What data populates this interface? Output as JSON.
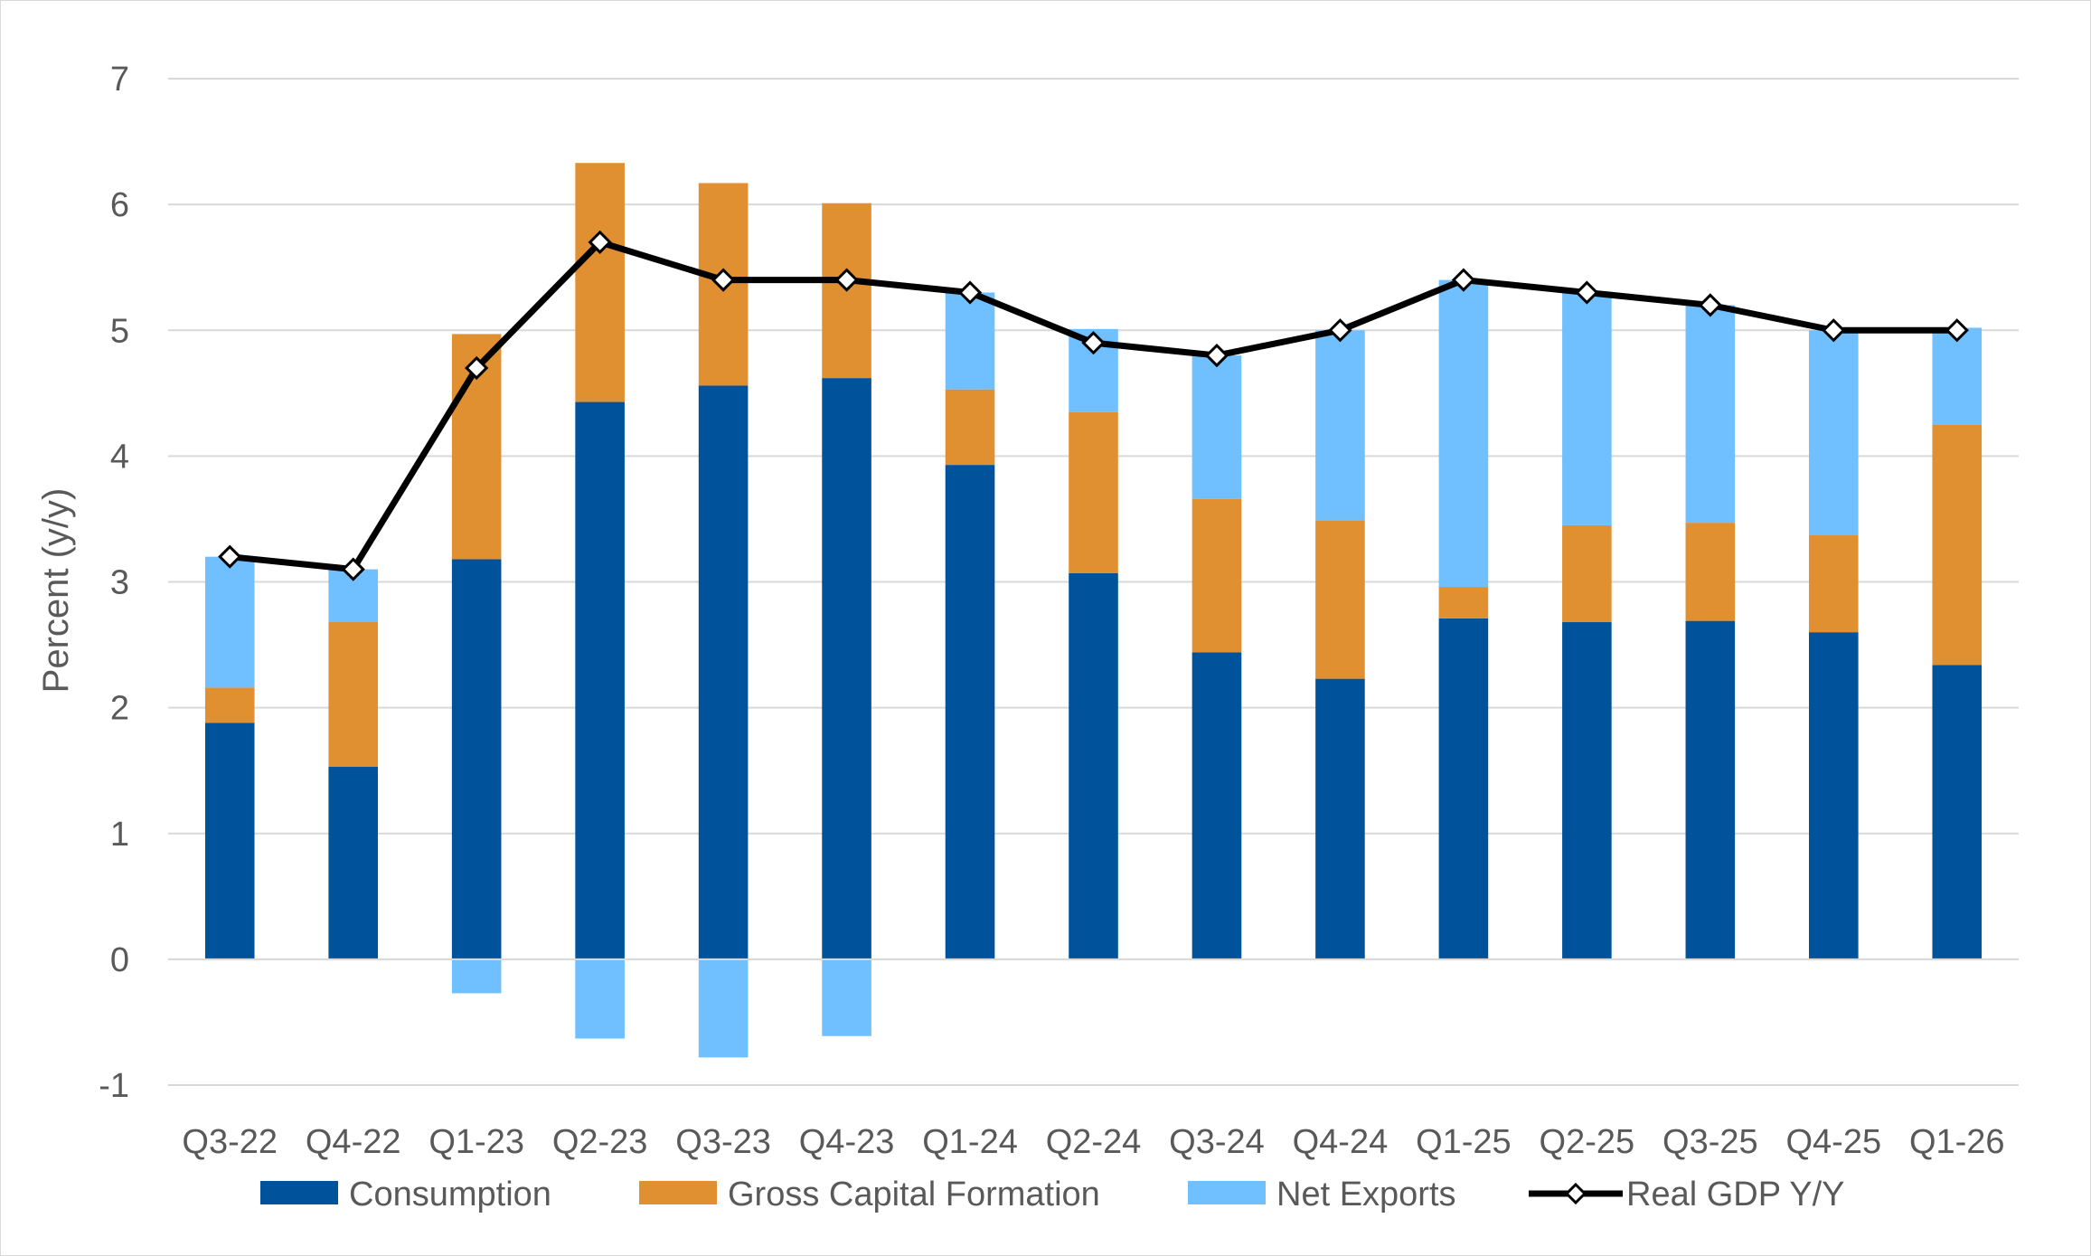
{
  "chart_data": {
    "type": "bar",
    "stacked": true,
    "ylabel": "Percent (y/y)",
    "ylim": [
      -1,
      7
    ],
    "yticks": [
      "-1",
      "0",
      "1",
      "2",
      "3",
      "4",
      "5",
      "6",
      "7"
    ],
    "grid": true,
    "legend_position": "bottom",
    "categories": [
      "Q3-22",
      "Q4-22",
      "Q1-23",
      "Q2-23",
      "Q3-23",
      "Q4-23",
      "Q1-24",
      "Q2-24",
      "Q3-24",
      "Q4-24",
      "Q1-25",
      "Q2-25",
      "Q3-25",
      "Q4-25",
      "Q1-26"
    ],
    "series": [
      {
        "name": "Consumption",
        "kind": "bar",
        "color": "#00539a",
        "values": [
          1.88,
          1.53,
          3.18,
          4.43,
          4.56,
          4.62,
          3.93,
          3.07,
          2.44,
          2.23,
          2.71,
          2.68,
          2.69,
          2.6,
          2.34
        ]
      },
      {
        "name": "Gross Capital Formation",
        "kind": "bar",
        "color": "#e08f31",
        "values": [
          0.28,
          1.15,
          1.79,
          1.9,
          1.61,
          1.39,
          0.6,
          1.28,
          1.22,
          1.26,
          0.25,
          0.77,
          0.78,
          0.77,
          1.91
        ]
      },
      {
        "name": "Net Exports",
        "kind": "bar",
        "color": "#70bfff",
        "values": [
          1.04,
          0.42,
          -0.27,
          -0.63,
          -0.78,
          -0.61,
          0.77,
          0.66,
          1.14,
          1.51,
          2.44,
          1.85,
          1.73,
          1.63,
          0.77
        ]
      },
      {
        "name": "Real GDP Y/Y",
        "kind": "line",
        "color": "#000000",
        "values": [
          3.2,
          3.1,
          4.7,
          5.7,
          5.4,
          5.4,
          5.3,
          4.9,
          4.8,
          5.0,
          5.4,
          5.3,
          5.2,
          5.0,
          5.0
        ]
      }
    ]
  }
}
